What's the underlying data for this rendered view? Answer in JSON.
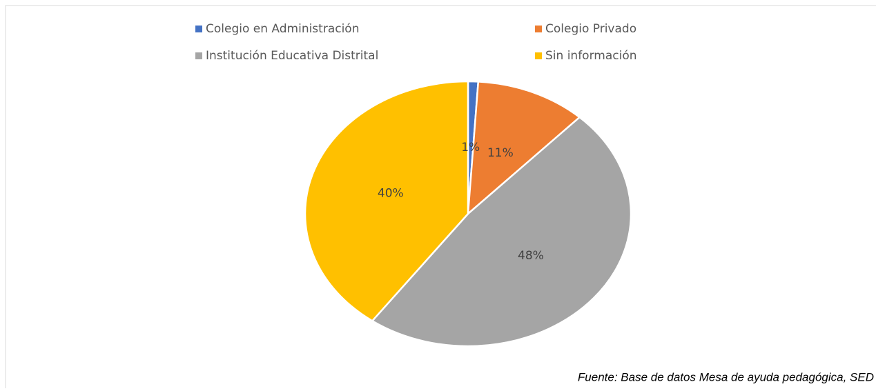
{
  "chart_data": {
    "type": "pie",
    "categories": [
      "Colegio en Administración",
      "Colegio Privado",
      "Institución Educativa Distrital",
      "Sin información"
    ],
    "values": [
      1,
      11,
      48,
      40
    ],
    "value_labels": [
      "1%",
      "11%",
      "48%",
      "40%"
    ],
    "colors": [
      "#4472c4",
      "#ed7d31",
      "#a5a5a5",
      "#ffc000"
    ],
    "source": "Fuente: Base de datos Mesa de ayuda pedagógica, SED"
  }
}
